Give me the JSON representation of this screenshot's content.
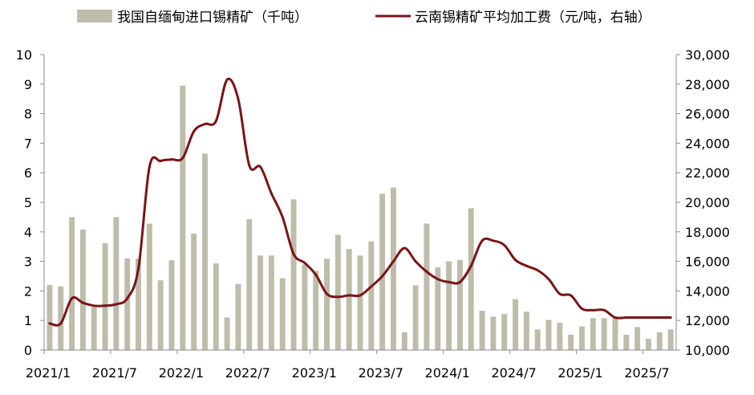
{
  "chart_data": {
    "type": "bar+line",
    "legend_position": "top",
    "grid": false,
    "x_ticks": [
      "2021/1",
      "2021/7",
      "2022/1",
      "2022/7",
      "2023/1",
      "2023/7",
      "2024/1",
      "2024/7",
      "2025/1",
      "2025/7"
    ],
    "left_axis": {
      "ylim": [
        0,
        10
      ],
      "ticks": [
        "0",
        "1",
        "2",
        "3",
        "4",
        "5",
        "6",
        "7",
        "8",
        "9",
        "10"
      ]
    },
    "right_axis": {
      "ylim": [
        10000,
        30000
      ],
      "ticks": [
        "10,000",
        "12,000",
        "14,000",
        "16,000",
        "18,000",
        "20,000",
        "22,000",
        "24,000",
        "26,000",
        "28,000",
        "30,000"
      ]
    },
    "bar_series": {
      "name": "我国自缅甸进口锡精矿（千吨）",
      "color": "#bebcaa",
      "values": [
        2.2,
        2.15,
        4.5,
        4.08,
        1.45,
        3.62,
        4.5,
        3.1,
        3.1,
        4.28,
        2.36,
        3.04,
        8.95,
        3.94,
        6.65,
        2.93,
        1.1,
        2.24,
        4.43,
        3.2,
        3.2,
        2.43,
        5.1,
        2.9,
        2.68,
        3.09,
        3.9,
        3.42,
        3.2,
        3.68,
        5.29,
        5.5,
        0.6,
        2.19,
        4.28,
        2.8,
        3.0,
        3.05,
        4.8,
        1.33,
        1.13,
        1.22,
        1.72,
        1.3,
        0.7,
        1.02,
        0.92,
        0.52,
        0.8,
        1.08,
        1.08,
        1.13,
        0.52,
        0.78,
        0.38,
        0.6,
        0.7
      ]
    },
    "line_series": {
      "name": "云南锡精矿平均加工费（元/吨，右轴）",
      "color": "#7a1418",
      "values": [
        11800,
        11800,
        13500,
        13200,
        13000,
        13000,
        13100,
        13500,
        15500,
        22400,
        22800,
        22900,
        23000,
        24800,
        25300,
        25500,
        28300,
        27000,
        22500,
        22400,
        20600,
        19000,
        16500,
        15900,
        15100,
        13800,
        13600,
        13700,
        13700,
        14300,
        15000,
        16000,
        16900,
        16000,
        15300,
        14800,
        14600,
        14600,
        15700,
        17400,
        17400,
        17100,
        16100,
        15700,
        15400,
        14800,
        13800,
        13700,
        12800,
        12700,
        12700,
        12200,
        12200,
        12200,
        12200,
        12200,
        12200
      ]
    }
  }
}
